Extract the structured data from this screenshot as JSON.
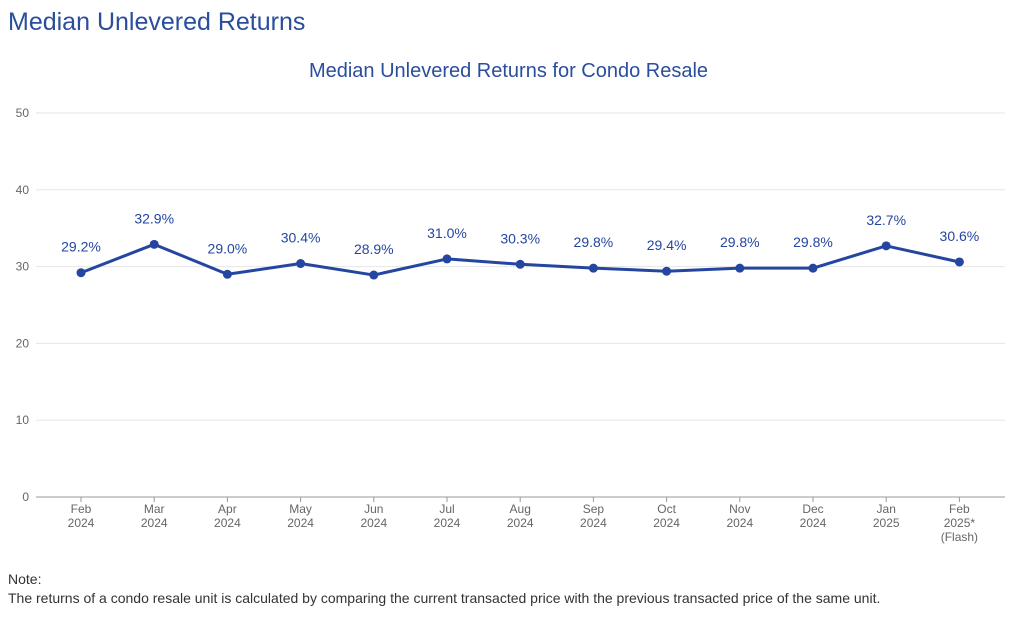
{
  "page_title": "Median Unlevered Returns",
  "note": {
    "heading": "Note:",
    "text": "The returns of a condo resale unit is calculated by comparing the current transacted price with the previous transacted price of the same unit."
  },
  "colors": {
    "title": "#2a4e9c",
    "series": "#2446a0",
    "grid": "#e6e6e6",
    "axis": "#666666"
  },
  "chart_data": {
    "type": "line",
    "title": "Median Unlevered Returns for Condo Resale",
    "xlabel": "",
    "ylabel": "",
    "ylim": [
      0,
      50
    ],
    "yticks": [
      0,
      10,
      20,
      30,
      40,
      50
    ],
    "grid": true,
    "legend": "none",
    "categories": [
      [
        "Feb",
        "2024"
      ],
      [
        "Mar",
        "2024"
      ],
      [
        "Apr",
        "2024"
      ],
      [
        "May",
        "2024"
      ],
      [
        "Jun",
        "2024"
      ],
      [
        "Jul",
        "2024"
      ],
      [
        "Aug",
        "2024"
      ],
      [
        "Sep",
        "2024"
      ],
      [
        "Oct",
        "2024"
      ],
      [
        "Nov",
        "2024"
      ],
      [
        "Dec",
        "2024"
      ],
      [
        "Jan",
        "2025"
      ],
      [
        "Feb",
        "2025*",
        "(Flash)"
      ]
    ],
    "series": [
      {
        "values": [
          29.2,
          32.9,
          29.0,
          30.4,
          28.9,
          31.0,
          30.3,
          29.8,
          29.4,
          29.8,
          29.8,
          32.7,
          30.6
        ],
        "labels": [
          "29.2%",
          "32.9%",
          "29.0%",
          "30.4%",
          "28.9%",
          "31.0%",
          "30.3%",
          "29.8%",
          "29.4%",
          "29.8%",
          "29.8%",
          "32.7%",
          "30.6%"
        ]
      }
    ]
  }
}
